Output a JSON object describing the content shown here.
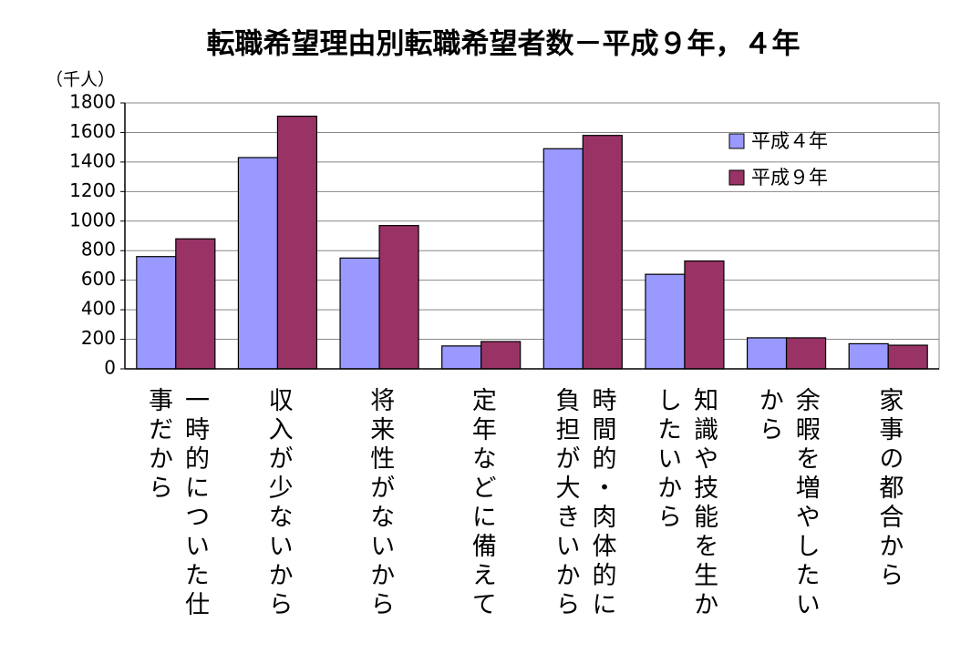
{
  "chart_data": {
    "type": "bar",
    "title": "転職希望理由別転職希望者数－平成９年，４年",
    "y_axis_label": "（千人）",
    "categories": [
      "一時的についた仕事だから",
      "収入が少ないから",
      "将来性がないから",
      "定年などに備えて",
      "時間的・肉体的に負担が大きいから",
      "知識や技能を生かしたいから",
      "余暇を増やしたいから",
      "家事の都合から"
    ],
    "series": [
      {
        "name": "平成４年",
        "color": "#9999ff",
        "values": [
          760,
          1430,
          750,
          155,
          1490,
          640,
          210,
          170
        ]
      },
      {
        "name": "平成９年",
        "color": "#993366",
        "values": [
          880,
          1710,
          970,
          185,
          1580,
          730,
          210,
          160
        ]
      }
    ],
    "ylim": [
      0,
      1800
    ],
    "yticks": [
      0,
      200,
      400,
      600,
      800,
      1000,
      1200,
      1400,
      1600,
      1800
    ],
    "grid": true,
    "legend": "upper right"
  }
}
